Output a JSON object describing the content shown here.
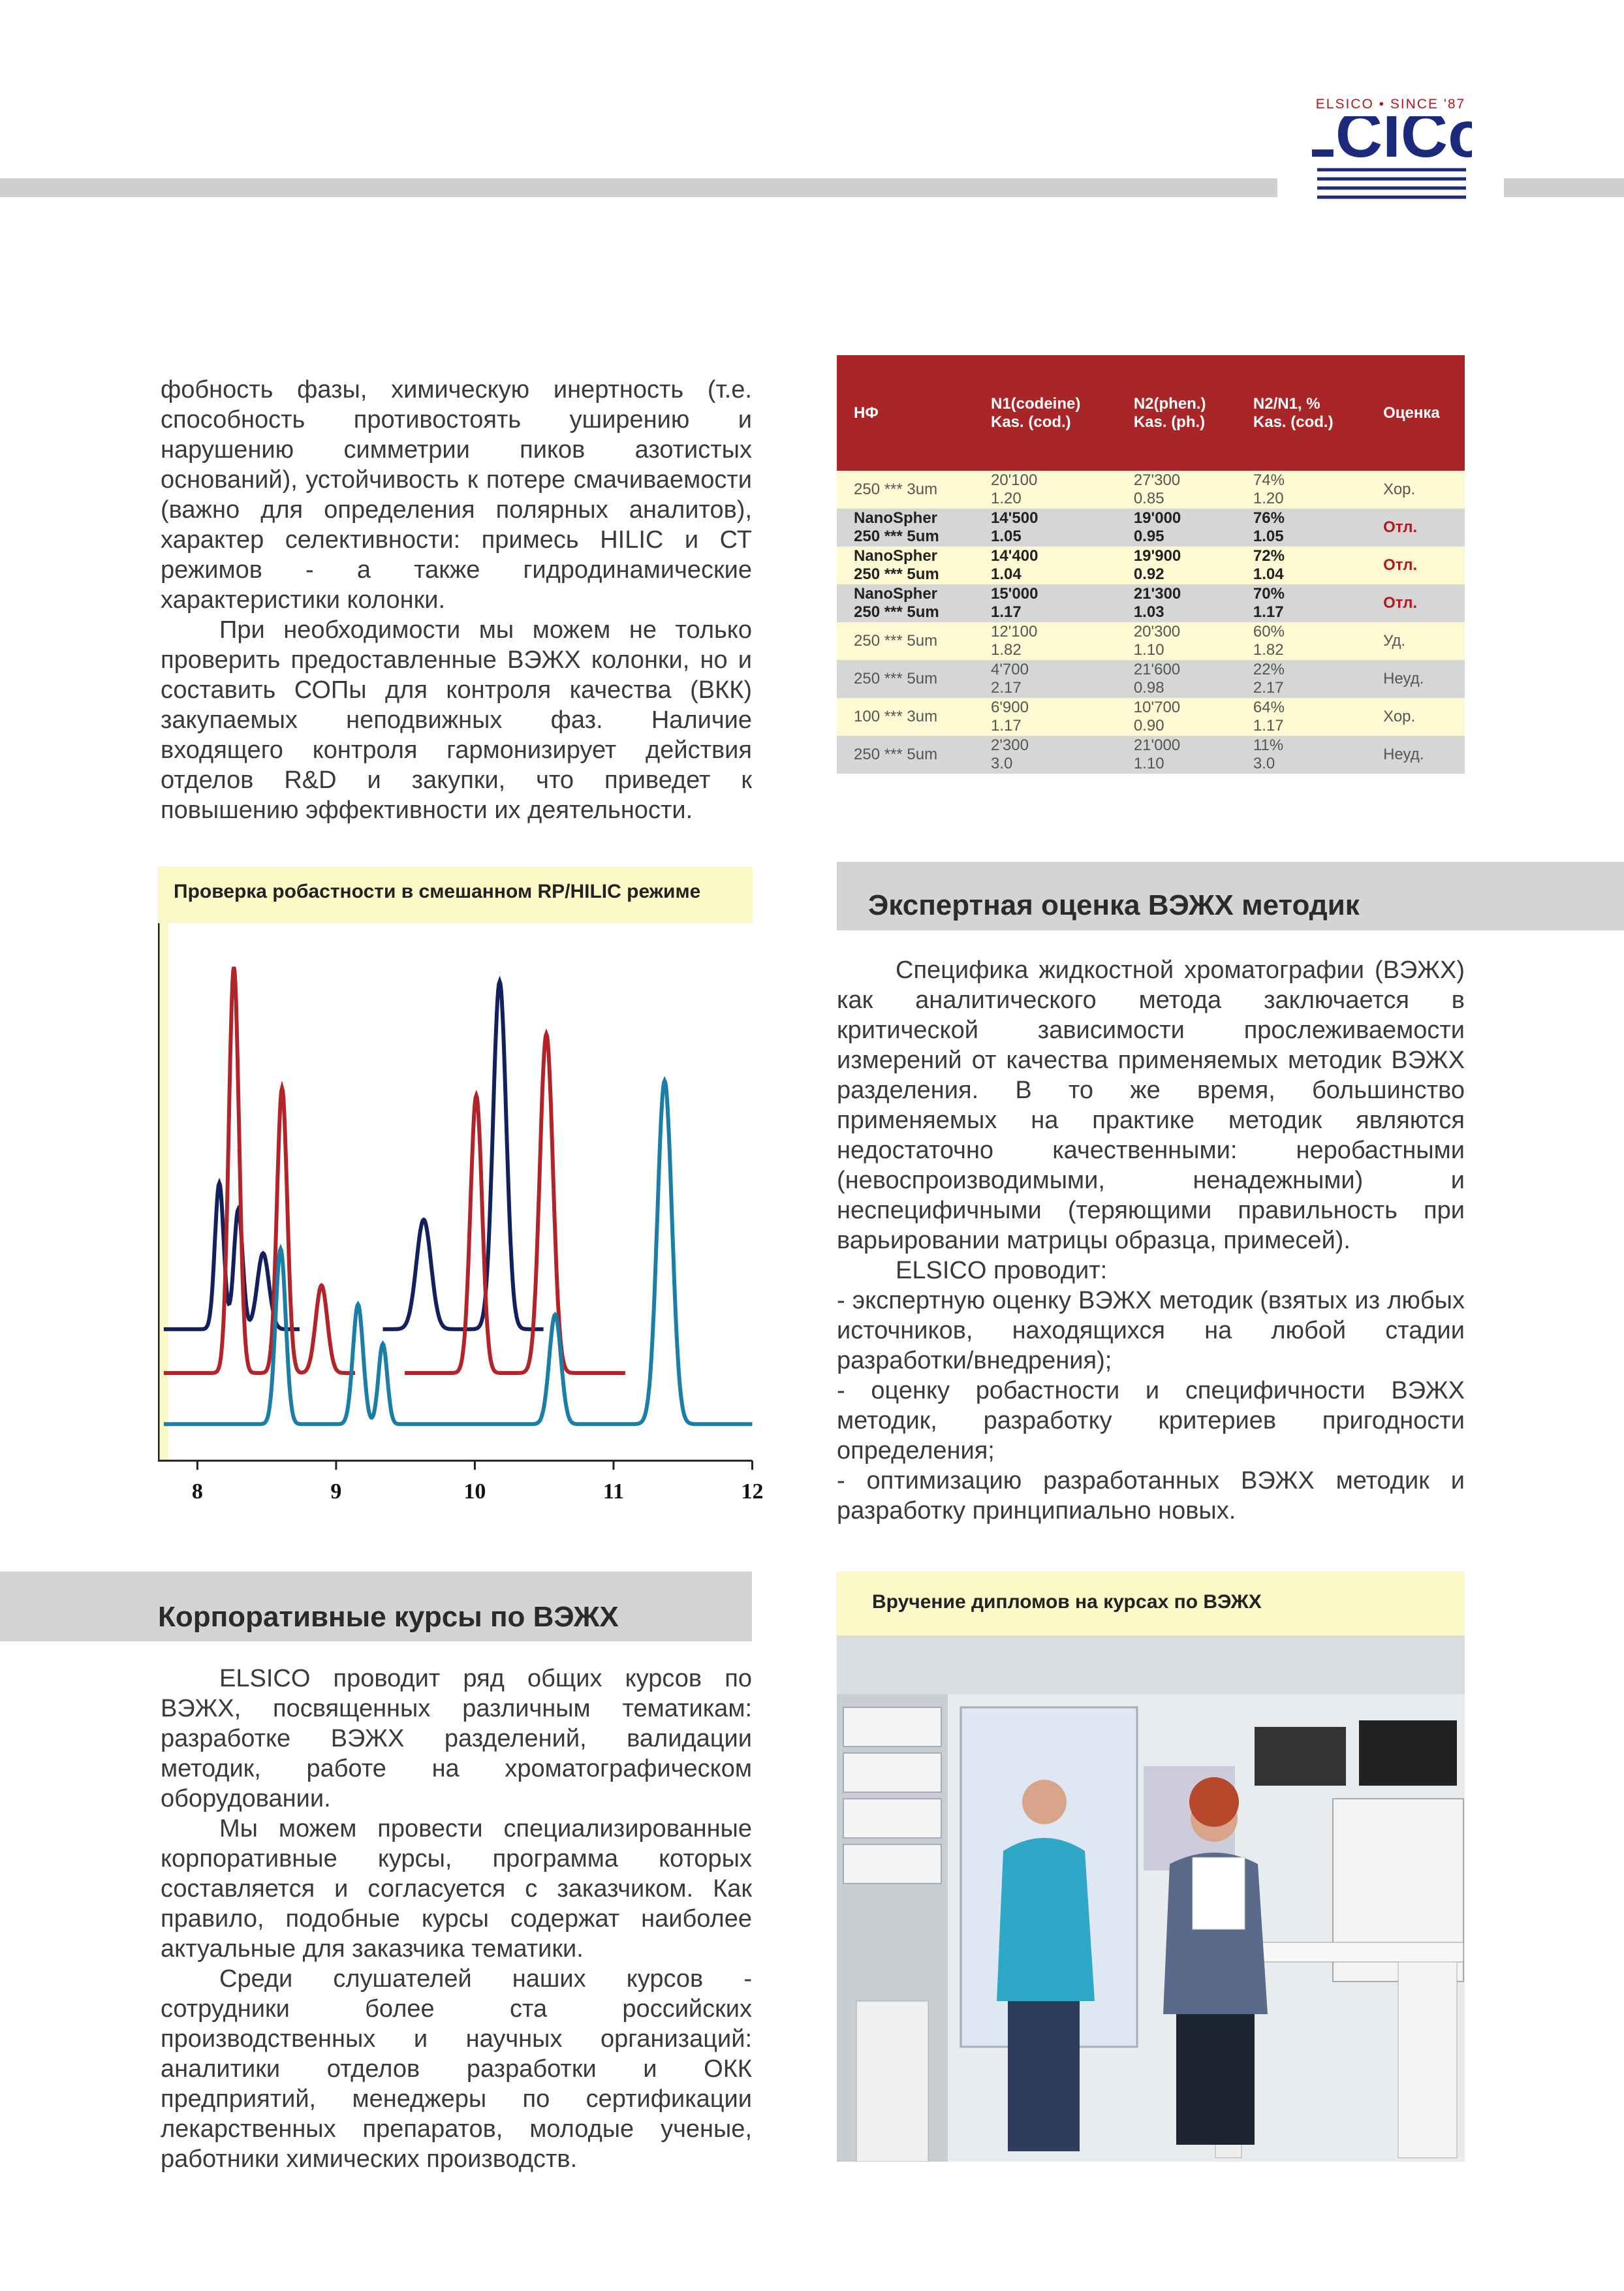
{
  "header": {
    "logo_tagline": "ELSICO • SINCE '87",
    "logo": "LCICo"
  },
  "intro": {
    "paragraphs": [
      "фобность фазы, химическую инертность (т.е. способность противостоять уширению и нарушению симметрии пиков азотистых оснований), устойчивость к потере смачиваемости (важно для определения полярных аналитов), характер селективности: примесь HILIC и СТ режимов - а также гидродинамические характеристики колонки.",
      "При необходимости мы можем не только проверить предоставленные ВЭЖХ колонки, но и составить СОПы для контроля качества (ВКК) закупаемых неподвижных фаз. Наличие входящего контроля гармонизирует действия отделов R&D и закупки, что приведет к повышению эффективности их деятельности."
    ]
  },
  "table": {
    "columns": [
      [
        "НФ"
      ],
      [
        "N1(codeine)",
        "Kas. (cod.)"
      ],
      [
        "N2(phen.)",
        "Kas. (ph.)"
      ],
      [
        "N2/N1, %",
        "Kas. (cod.)"
      ],
      [
        "Оценка"
      ]
    ],
    "rows": [
      [
        [
          "250 *** 3um"
        ],
        [
          "20'100",
          "1.20"
        ],
        [
          "27'300",
          "0.85"
        ],
        [
          "74%",
          "1.20"
        ],
        [
          "Хор."
        ]
      ],
      [
        [
          "NanoSpher",
          "250 *** 5um"
        ],
        [
          "14'500",
          "1.05"
        ],
        [
          "19'000",
          "0.95"
        ],
        [
          "76%",
          "1.05"
        ],
        [
          "Отл."
        ]
      ],
      [
        [
          "NanoSpher",
          "250 *** 5um"
        ],
        [
          "14'400",
          "1.04"
        ],
        [
          "19'900",
          "0.92"
        ],
        [
          "72%",
          "1.04"
        ],
        [
          "Отл."
        ]
      ],
      [
        [
          "NanoSpher",
          "250 *** 5um"
        ],
        [
          "15'000",
          "1.17"
        ],
        [
          "21'300",
          "1.03"
        ],
        [
          "70%",
          "1.17"
        ],
        [
          "Отл."
        ]
      ],
      [
        [
          "250 *** 5um"
        ],
        [
          "12'100",
          "1.82"
        ],
        [
          "20'300",
          "1.10"
        ],
        [
          "60%",
          "1.82"
        ],
        [
          "Уд."
        ]
      ],
      [
        [
          "250 *** 5um"
        ],
        [
          "4'700",
          "2.17"
        ],
        [
          "21'600",
          "0.98"
        ],
        [
          "22%",
          "2.17"
        ],
        [
          "Неуд."
        ]
      ],
      [
        [
          "100 *** 3um"
        ],
        [
          "6'900",
          "1.17"
        ],
        [
          "10'700",
          "0.90"
        ],
        [
          "64%",
          "1.17"
        ],
        [
          "Хор."
        ]
      ],
      [
        [
          "250 *** 5um"
        ],
        [
          "2'300",
          "3.0"
        ],
        [
          "21'000",
          "1.10"
        ],
        [
          "11%",
          "3.0"
        ],
        [
          "Неуд."
        ]
      ]
    ]
  },
  "chromatogram": {
    "title": "Проверка робастности в смешанном RP/HILIC режиме",
    "xticks": [
      8,
      9,
      10,
      11,
      12
    ]
  },
  "expert": {
    "title": "Экспертная оценка ВЭЖХ методик",
    "paragraphs": [
      "Специфика жидкостной хроматографии (ВЭЖХ) как аналитического метода заключается в критической зависимости прослеживаемости измерений от качества применяемых методик ВЭЖХ разделения. В то же время, большинство применяемых на практике методик являются недостаточно качественными: неробастными (невоспроизводимыми, ненадежными) и неспецифичными (теряющими правильность при варьировании матрицы образца, примесей).",
      "ELSICO проводит:",
      "- экспертную оценку ВЭЖХ методик (взятых из любых источников, находящихся на любой стадии разработки/внедрения);",
      "- оценку робастности и специфичности ВЭЖХ методик, разработку критериев пригодности определения;",
      "- оптимизацию разработанных ВЭЖХ методик и разработку принципиально новых."
    ]
  },
  "courses": {
    "title": "Корпоративные курсы по ВЭЖХ",
    "paragraphs": [
      "ELSICO проводит ряд общих курсов по ВЭЖХ, посвященных различным тематикам: разработке ВЭЖХ разделений, валидации методик, работе на хроматографическом оборудовании.",
      "Мы можем провести специализированные корпоративные курсы, программа которых составляется и согласуется с заказчиком. Как правило, подобные курсы содержат наиболее актуальные для заказчика тематики.",
      "Среди слушателей наших курсов - сотрудники более ста российских производственных и научных организаций: аналитики отделов разработки и ОКК предприятий, менеджеры по сертификации лекарственных препаратов, молодые ученые, работники химических производств."
    ]
  },
  "photo": {
    "caption": "Вручение дипломов на курсах по ВЭЖХ"
  }
}
